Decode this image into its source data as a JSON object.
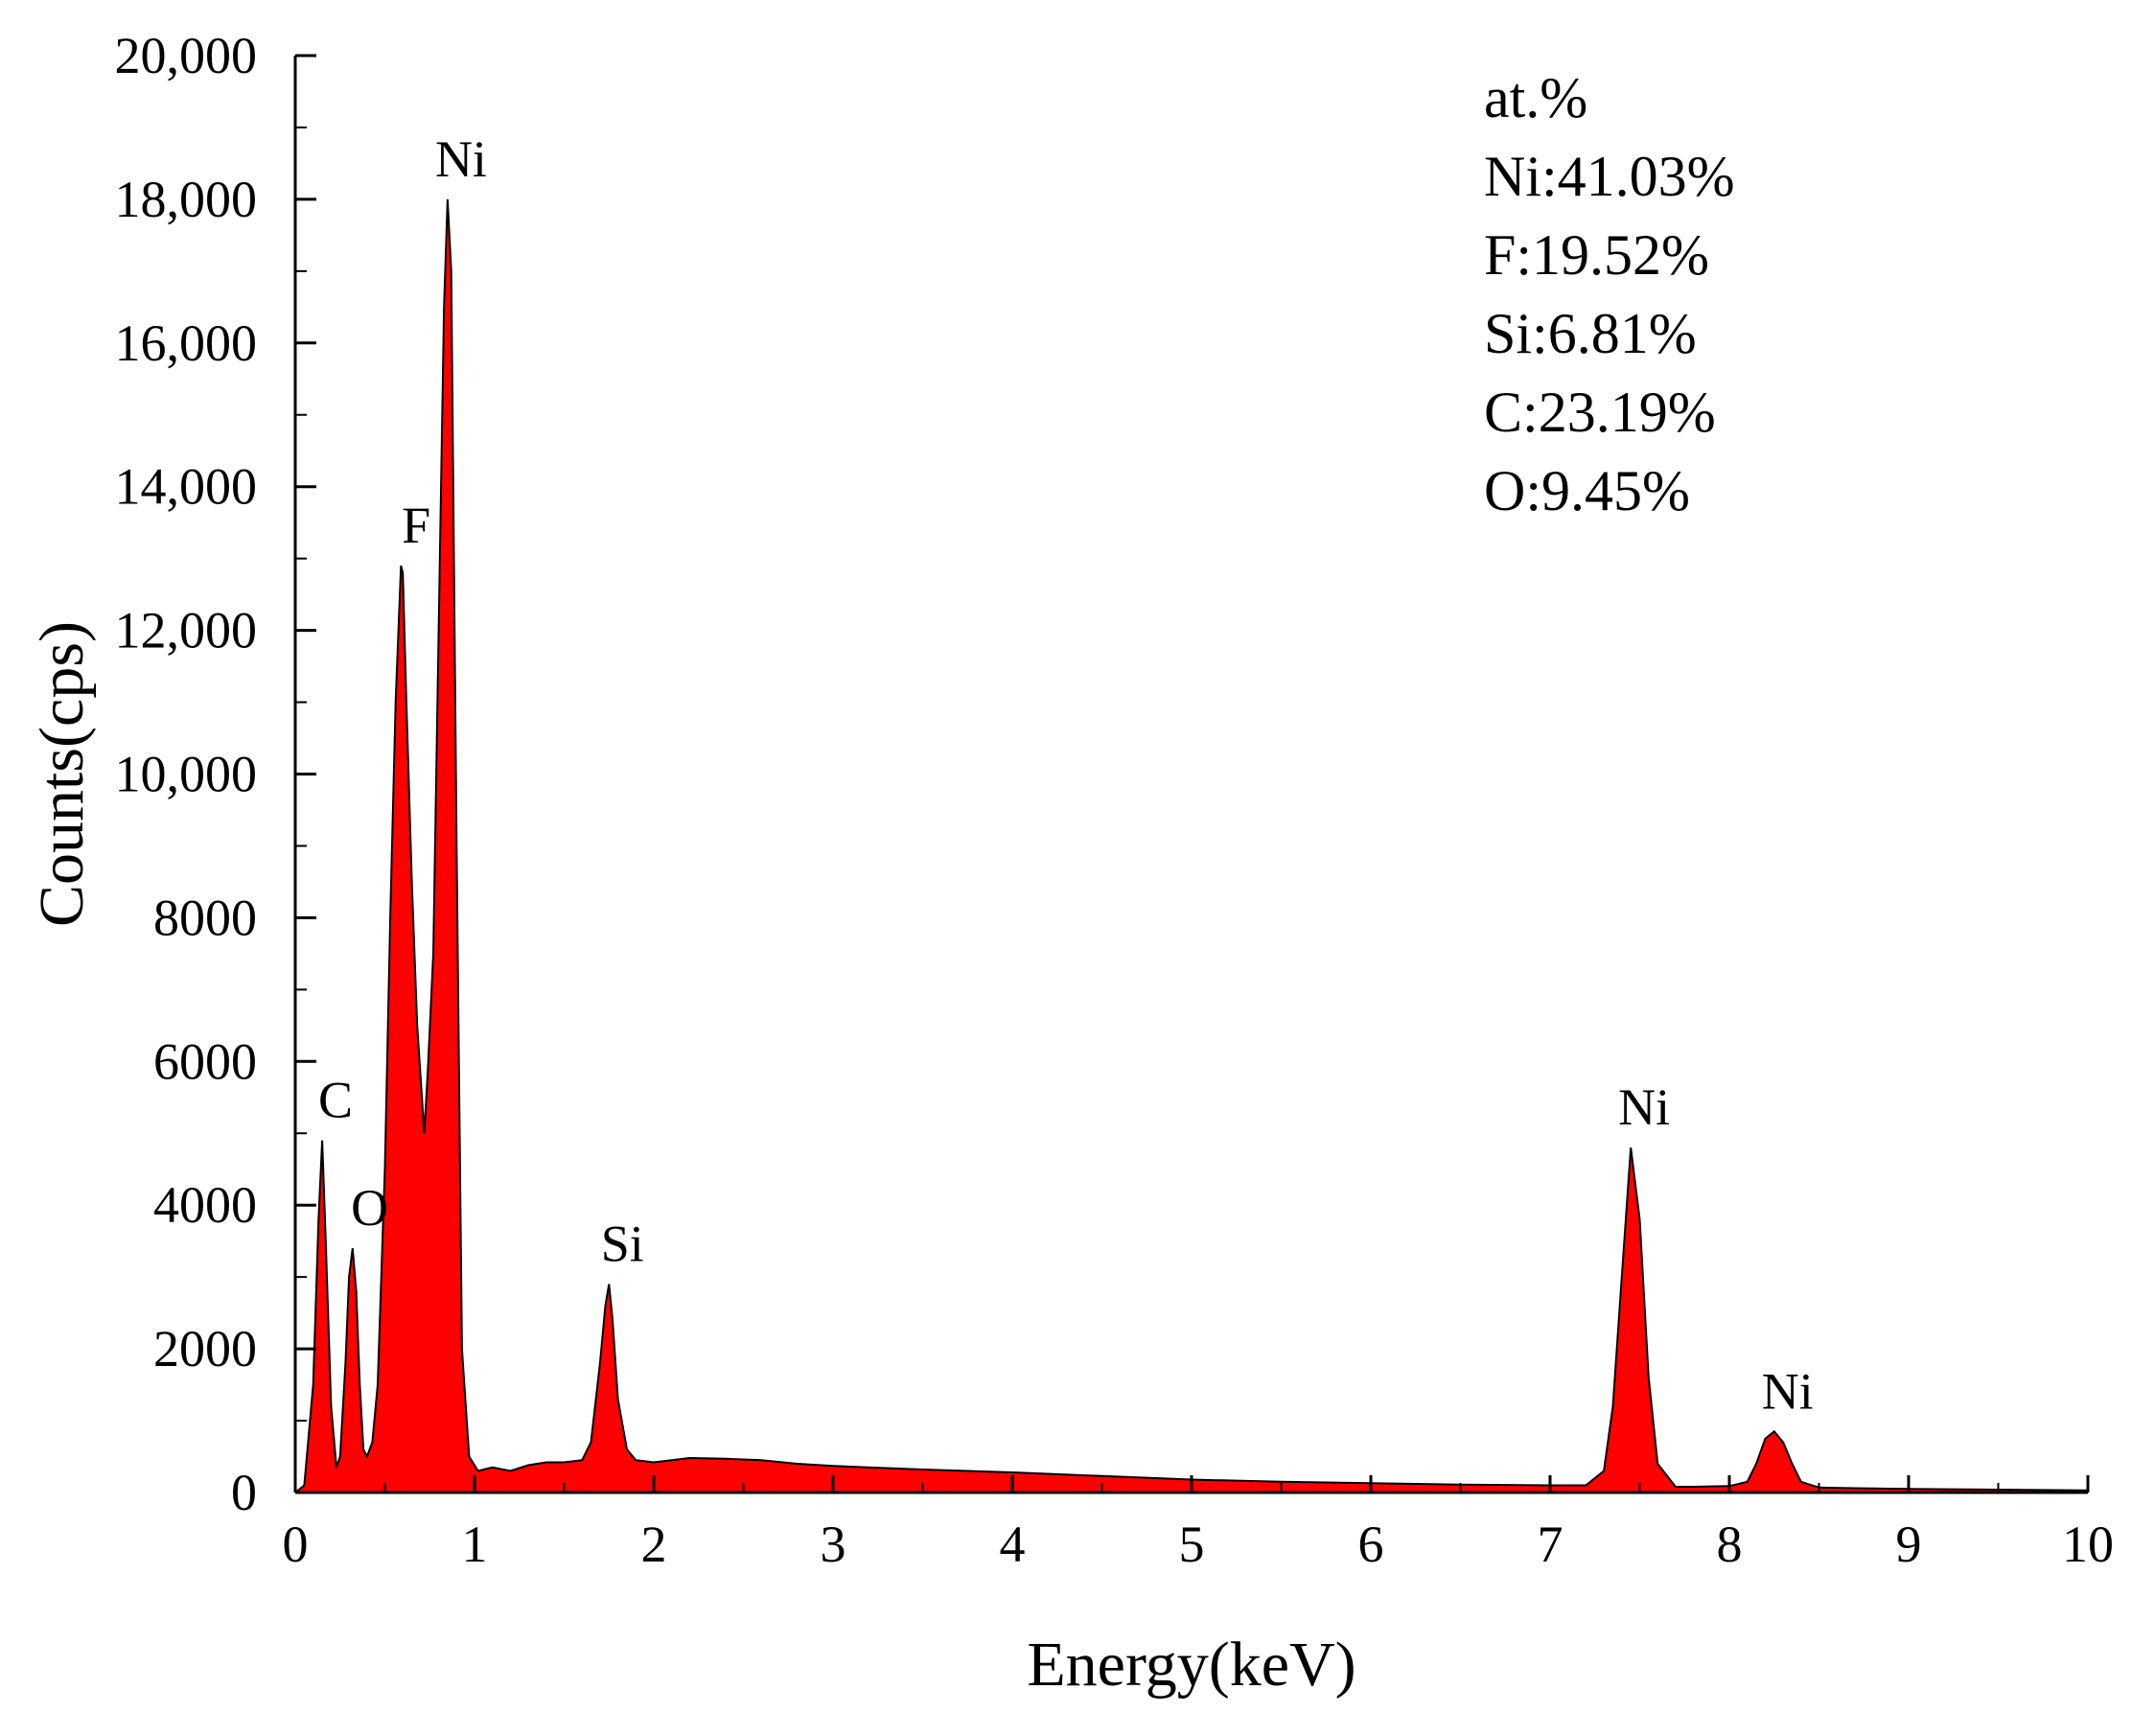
{
  "chart_data": {
    "type": "area",
    "xlabel": "Energy(keV)",
    "ylabel": "Counts(cps)",
    "xlim": [
      0,
      10
    ],
    "ylim": [
      0,
      20000
    ],
    "x_ticks": [
      {
        "value": 0,
        "label": "0"
      },
      {
        "value": 1,
        "label": "1"
      },
      {
        "value": 2,
        "label": "2"
      },
      {
        "value": 3,
        "label": "3"
      },
      {
        "value": 4,
        "label": "4"
      },
      {
        "value": 5,
        "label": "5"
      },
      {
        "value": 6,
        "label": "6"
      },
      {
        "value": 7,
        "label": "7"
      },
      {
        "value": 8,
        "label": "8"
      },
      {
        "value": 9,
        "label": "9"
      },
      {
        "value": 10,
        "label": "10"
      }
    ],
    "y_ticks": [
      {
        "value": 0,
        "label": "0"
      },
      {
        "value": 2000,
        "label": "2000"
      },
      {
        "value": 4000,
        "label": "4000"
      },
      {
        "value": 6000,
        "label": "6000"
      },
      {
        "value": 8000,
        "label": "8000"
      },
      {
        "value": 10000,
        "label": "10,000"
      },
      {
        "value": 12000,
        "label": "12,000"
      },
      {
        "value": 14000,
        "label": "14,000"
      },
      {
        "value": 16000,
        "label": "16,000"
      },
      {
        "value": 18000,
        "label": "18,000"
      },
      {
        "value": 20000,
        "label": "20,000"
      }
    ],
    "grid": false,
    "fill_color": "#ff0000",
    "line_color": "#000000",
    "spectrum": {
      "x": [
        0,
        0.05,
        0.1,
        0.13,
        0.15,
        0.17,
        0.2,
        0.23,
        0.25,
        0.28,
        0.3,
        0.32,
        0.34,
        0.36,
        0.38,
        0.4,
        0.43,
        0.46,
        0.5,
        0.53,
        0.56,
        0.59,
        0.6,
        0.62,
        0.65,
        0.68,
        0.72,
        0.74,
        0.77,
        0.8,
        0.83,
        0.85,
        0.87,
        0.9,
        0.93,
        0.97,
        1.02,
        1.1,
        1.2,
        1.3,
        1.4,
        1.5,
        1.6,
        1.65,
        1.7,
        1.73,
        1.75,
        1.77,
        1.8,
        1.85,
        1.9,
        2.0,
        2.2,
        2.4,
        2.6,
        2.8,
        3.0,
        3.5,
        4.0,
        4.5,
        5.0,
        5.5,
        6.0,
        6.5,
        7.0,
        7.2,
        7.3,
        7.35,
        7.4,
        7.45,
        7.5,
        7.55,
        7.6,
        7.7,
        7.8,
        8.0,
        8.1,
        8.15,
        8.2,
        8.25,
        8.3,
        8.35,
        8.4,
        8.5,
        8.7,
        9.0,
        9.5,
        10.0
      ],
      "y": [
        0,
        100,
        1500,
        3800,
        4900,
        3500,
        1200,
        350,
        500,
        1800,
        3000,
        3400,
        2800,
        1500,
        600,
        500,
        700,
        1500,
        4500,
        8000,
        11000,
        12900,
        12800,
        11000,
        8500,
        6500,
        5000,
        5900,
        7500,
        12000,
        16500,
        18000,
        17000,
        9000,
        2000,
        500,
        300,
        350,
        300,
        380,
        420,
        420,
        450,
        700,
        1800,
        2600,
        2900,
        2400,
        1300,
        600,
        450,
        420,
        480,
        470,
        450,
        400,
        370,
        320,
        280,
        230,
        180,
        150,
        130,
        110,
        100,
        100,
        300,
        1200,
        3000,
        4800,
        3800,
        1600,
        400,
        80,
        80,
        90,
        150,
        400,
        750,
        850,
        700,
        400,
        150,
        70,
        60,
        50,
        40,
        30
      ]
    },
    "peak_labels": [
      {
        "text": "C",
        "x": 0.15,
        "y": 4900
      },
      {
        "text": "O",
        "x": 0.34,
        "y": 3400
      },
      {
        "text": "F",
        "x": 0.6,
        "y": 12900
      },
      {
        "text": "Ni",
        "x": 0.85,
        "y": 18000
      },
      {
        "text": "Si",
        "x": 1.75,
        "y": 2900
      },
      {
        "text": "Ni",
        "x": 7.45,
        "y": 4800
      },
      {
        "text": "Ni",
        "x": 8.25,
        "y": 850
      }
    ],
    "annotation_lines": [
      "at.%",
      "Ni:41.03%",
      "F:19.52%",
      "Si:6.81%",
      "C:23.19%",
      "O:9.45%"
    ]
  }
}
